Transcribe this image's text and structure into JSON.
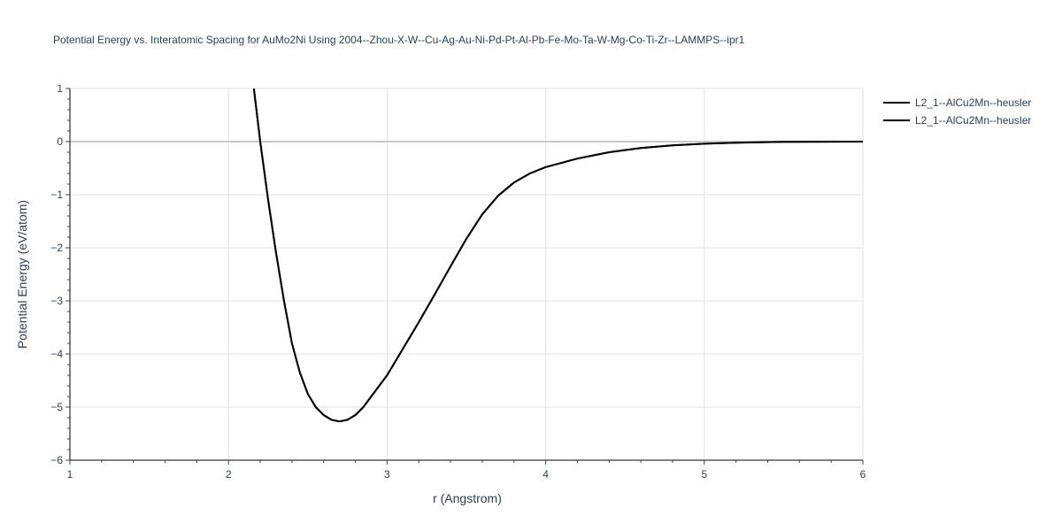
{
  "chart_data": {
    "type": "line",
    "title": "Potential Energy vs. Interatomic Spacing for AuMo2Ni Using 2004--Zhou-X-W--Cu-Ag-Au-Ni-Pd-Pt-Al-Pb-Fe-Mo-Ta-W-Mg-Co-Ti-Zr--LAMMPS--ipr1",
    "xlabel": "r (Angstrom)",
    "ylabel": "Potential Energy (eV/atom)",
    "xlim": [
      1,
      6
    ],
    "ylim": [
      -6,
      1
    ],
    "xticks": [
      1,
      2,
      3,
      4,
      5,
      6
    ],
    "yticks": [
      1,
      0,
      -1,
      -2,
      -3,
      -4,
      -5,
      -6
    ],
    "grid": true,
    "legend_placement": "top-right outside",
    "series": [
      {
        "name": "L2_1--AlCu2Mn--heusler",
        "color": "#000000",
        "x": [
          2.16,
          2.2,
          2.25,
          2.3,
          2.35,
          2.4,
          2.45,
          2.5,
          2.55,
          2.6,
          2.65,
          2.7,
          2.75,
          2.8,
          2.85,
          2.9,
          3.0,
          3.1,
          3.2,
          3.3,
          3.4,
          3.5,
          3.6,
          3.7,
          3.8,
          3.9,
          4.0,
          4.2,
          4.4,
          4.6,
          4.8,
          5.0,
          5.2,
          5.5,
          6.0
        ],
        "y": [
          1.0,
          0.0,
          -1.1,
          -2.1,
          -3.0,
          -3.8,
          -4.35,
          -4.75,
          -5.0,
          -5.15,
          -5.24,
          -5.27,
          -5.24,
          -5.15,
          -5.0,
          -4.8,
          -4.4,
          -3.9,
          -3.4,
          -2.88,
          -2.35,
          -1.83,
          -1.37,
          -1.02,
          -0.77,
          -0.6,
          -0.48,
          -0.32,
          -0.2,
          -0.12,
          -0.07,
          -0.04,
          -0.02,
          -0.005,
          0.0
        ]
      },
      {
        "name": "L2_1--AlCu2Mn--heusler",
        "color": "#000000",
        "x": [
          2.16,
          2.2,
          2.25,
          2.3,
          2.35,
          2.4,
          2.45,
          2.5,
          2.55,
          2.6,
          2.65,
          2.7,
          2.75,
          2.8,
          2.85,
          2.9,
          3.0,
          3.1,
          3.2,
          3.3,
          3.4,
          3.5,
          3.6,
          3.7,
          3.8,
          3.9,
          4.0,
          4.2,
          4.4,
          4.6,
          4.8,
          5.0,
          5.2,
          5.5,
          6.0
        ],
        "y": [
          1.0,
          0.0,
          -1.1,
          -2.1,
          -3.0,
          -3.8,
          -4.35,
          -4.75,
          -5.0,
          -5.15,
          -5.24,
          -5.27,
          -5.24,
          -5.15,
          -5.0,
          -4.8,
          -4.4,
          -3.9,
          -3.4,
          -2.88,
          -2.35,
          -1.83,
          -1.37,
          -1.02,
          -0.77,
          -0.6,
          -0.48,
          -0.32,
          -0.2,
          -0.12,
          -0.07,
          -0.04,
          -0.02,
          -0.005,
          0.0
        ]
      }
    ]
  }
}
